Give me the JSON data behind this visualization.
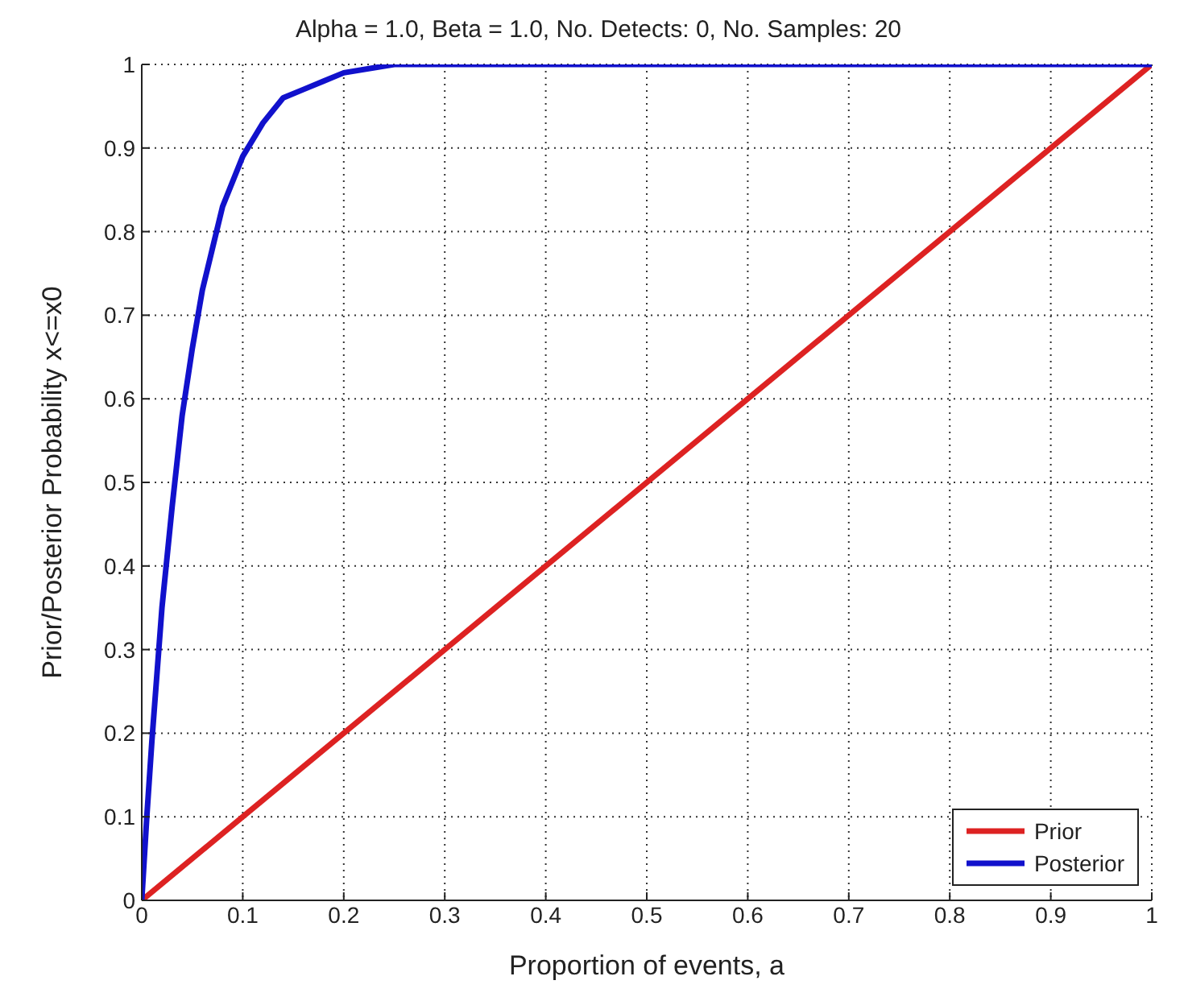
{
  "chart_data": {
    "type": "line",
    "title": "Alpha =  1.0, Beta =  1.0, No. Detects:   0, No. Samples:  20",
    "xlabel": "Proportion of events, a",
    "ylabel": "Prior/Posterior Probability x<=x0",
    "series": [
      {
        "name": "Prior",
        "color": "#dd2222",
        "x": [
          0,
          1
        ],
        "values": [
          0,
          1
        ]
      },
      {
        "name": "Posterior",
        "color": "#1111cc",
        "x": [
          0,
          0.005,
          0.01,
          0.02,
          0.03,
          0.04,
          0.05,
          0.06,
          0.07,
          0.08,
          0.1,
          0.12,
          0.14,
          0.16,
          0.18,
          0.2,
          0.25,
          0.3,
          0.4,
          0.5,
          0.6,
          0.7,
          0.8,
          0.9,
          1
        ],
        "values": [
          0,
          0.1,
          0.19,
          0.35,
          0.47,
          0.58,
          0.66,
          0.73,
          0.78,
          0.83,
          0.89,
          0.93,
          0.96,
          0.97,
          0.98,
          0.99,
          1,
          1,
          1,
          1,
          1,
          1,
          1,
          1,
          1
        ]
      }
    ],
    "xlim": [
      0,
      1
    ],
    "xticks": [
      0,
      0.1,
      0.2,
      0.3,
      0.4,
      0.5,
      0.6,
      0.7,
      0.8,
      0.9,
      1
    ],
    "ylim": [
      0,
      1
    ],
    "yticks": [
      0,
      0.1,
      0.2,
      0.3,
      0.4,
      0.5,
      0.6,
      0.7,
      0.8,
      0.9,
      1
    ],
    "grid": true,
    "legend": "bottom right",
    "marker": "none",
    "line_style": "solid"
  }
}
